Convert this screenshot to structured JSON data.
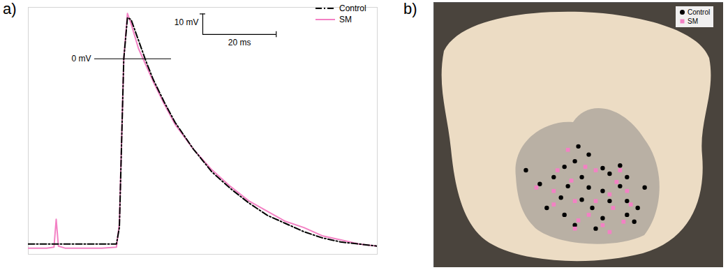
{
  "chart_data": [
    {
      "type": "line",
      "title": "a)",
      "tick_labels": false,
      "legend": "top-right",
      "xlim": [
        0,
        95
      ],
      "ylim": [
        -95,
        25
      ],
      "xticks": [],
      "yticks": [],
      "x": [
        0,
        5,
        7,
        7.6,
        8.2,
        10,
        15,
        20,
        24,
        24.8,
        26,
        27,
        28,
        30,
        32,
        34,
        37,
        40,
        45,
        50,
        55,
        60,
        65,
        70,
        75,
        80,
        85,
        90,
        95
      ],
      "series": [
        {
          "name": "Control",
          "color": "#000000",
          "line_style": "dashdot",
          "values": [
            -90,
            -90,
            -90,
            -90,
            -90,
            -90,
            -90,
            -90,
            -90,
            -82,
            0,
            20,
            19,
            9,
            -1,
            -10,
            -21,
            -31,
            -44,
            -55,
            -63,
            -70,
            -76,
            -80,
            -84,
            -87,
            -89,
            -90,
            -91
          ]
        },
        {
          "name": "SM",
          "color": "#f381c4",
          "line_style": "solid",
          "values": [
            -92,
            -92,
            -91.5,
            -78,
            -91,
            -92,
            -92,
            -92,
            -91.5,
            -80,
            0,
            22,
            17,
            5,
            -3,
            -11,
            -22,
            -32,
            -44,
            -54,
            -62,
            -69,
            -74,
            -79,
            -82,
            -86,
            -88,
            -90,
            -91
          ]
        }
      ],
      "reference_line": {
        "y": 0,
        "label": "0 mV"
      },
      "scale_bar": {
        "x": 20,
        "y": 10,
        "x_label": "20 ms",
        "y_label": "10 mV"
      }
    },
    {
      "type": "scatter",
      "title": "b)",
      "tick_labels": false,
      "legend": "top-right",
      "xlim": [
        0,
        100
      ],
      "ylim": [
        100,
        0
      ],
      "xticks": [],
      "yticks": [],
      "series": [
        {
          "name": "Control",
          "color": "#000000",
          "marker": "circle",
          "x": [
            49.9,
            53.5,
            48.7,
            45.1,
            58.3,
            64.3,
            31.8,
            41.4,
            51.1,
            60.7,
            66.7,
            36.6,
            46.3,
            53.5,
            58.3,
            64.3,
            72.8,
            43.9,
            51.1,
            60.7,
            66.7,
            70.4,
            54.7,
            39.0,
            45.1,
            58.3,
            66.7,
            48.7,
            69.2,
            55.9
          ],
          "values": [
            54.3,
            57.4,
            59.9,
            62.0,
            62.5,
            61.5,
            63.3,
            65.9,
            65.9,
            64.6,
            65.9,
            68.5,
            69.3,
            69.8,
            71.1,
            69.3,
            69.8,
            73.6,
            74.4,
            74.9,
            74.9,
            77.5,
            77.5,
            77.5,
            80.1,
            81.4,
            80.1,
            84.0,
            82.7,
            85.3
          ]
        },
        {
          "name": "SM",
          "color": "#f381c4",
          "marker": "square",
          "x": [
            46.3,
            52.3,
            42.7,
            35.4,
            47.5,
            55.9,
            63.1,
            66.7,
            60.7,
            48.7,
            55.9,
            41.4,
            53.5,
            61.9,
            65.5,
            49.9,
            58.3,
            68.0,
            48.7,
            60.7,
            64.3,
            41.4
          ],
          "values": [
            55.6,
            62.0,
            63.3,
            69.8,
            67.2,
            63.3,
            67.7,
            71.1,
            72.4,
            74.9,
            74.9,
            76.2,
            80.1,
            77.5,
            82.7,
            82.2,
            84.0,
            76.2,
            85.3,
            86.6,
            63.3,
            71.1
          ]
        }
      ]
    }
  ]
}
